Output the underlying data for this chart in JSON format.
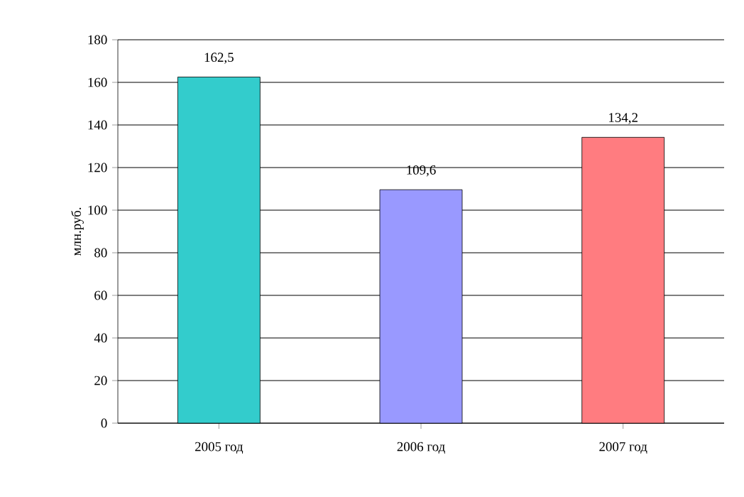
{
  "chart_data": {
    "type": "bar",
    "ylabel": "млн.руб.",
    "categories": [
      "2005 год",
      "2006 год",
      "2007 год"
    ],
    "values": [
      162.5,
      109.6,
      134.2
    ],
    "colors": [
      "#33cccc",
      "#9999ff",
      "#ff7c80"
    ],
    "value_labels": [
      "162,5",
      "109,6",
      "134,2"
    ],
    "ylim": [
      0,
      180
    ],
    "yticks": [
      0,
      20,
      40,
      60,
      80,
      100,
      120,
      140,
      160,
      180
    ],
    "grid": "y"
  }
}
